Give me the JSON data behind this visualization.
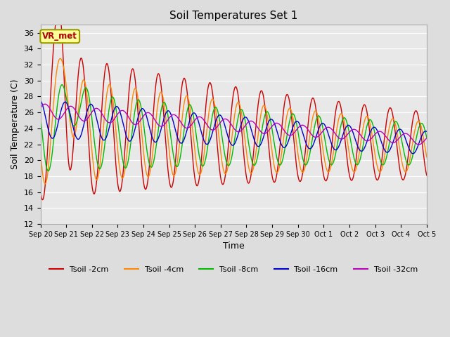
{
  "title": "Soil Temperatures Set 1",
  "xlabel": "Time",
  "ylabel": "Soil Temperature (C)",
  "ylim": [
    12,
    37
  ],
  "yticks": [
    12,
    14,
    16,
    18,
    20,
    22,
    24,
    26,
    28,
    30,
    32,
    34,
    36
  ],
  "bg_color": "#e8e8e8",
  "grid_color": "#ffffff",
  "line_colors": {
    "2cm": "#cc0000",
    "4cm": "#ff8800",
    "8cm": "#00bb00",
    "16cm": "#0000cc",
    "32cm": "#bb00bb"
  },
  "legend_labels": [
    "Tsoil -2cm",
    "Tsoil -4cm",
    "Tsoil -8cm",
    "Tsoil -16cm",
    "Tsoil -32cm"
  ],
  "annotation_text": "VR_met",
  "annotation_color": "#aa0000",
  "annotation_bg": "#ffff99",
  "annotation_border": "#999900",
  "tick_labels": [
    "Sep 20",
    "Sep 21",
    "Sep 22",
    "Sep 23",
    "Sep 24",
    "Sep 25",
    "Sep 26",
    "Sep 27",
    "Sep 28",
    "Sep 29",
    "Sep 30",
    "Oct 1",
    "Oct 2",
    "Oct 3",
    "Oct 4",
    "Oct 5"
  ],
  "days": 15,
  "figsize": [
    6.4,
    4.8
  ],
  "dpi": 100
}
